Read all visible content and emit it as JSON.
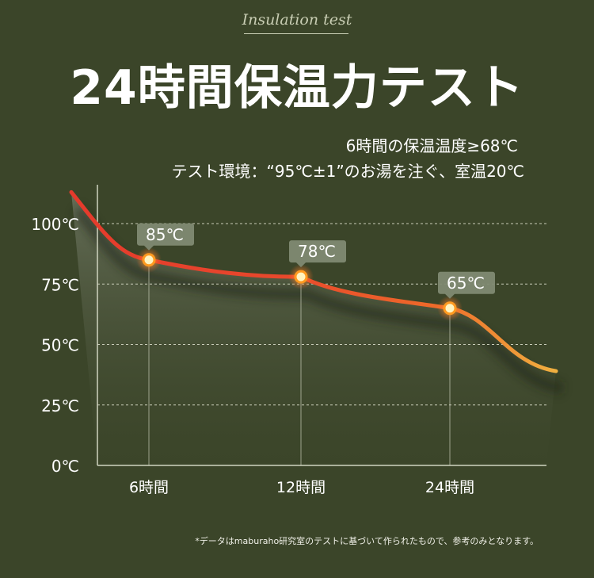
{
  "header": {
    "eyebrow": "Insulation test",
    "title": "24時間保温力テスト",
    "subtitle_1": "6時間の保温温度≥68℃",
    "subtitle_2": "テスト環境：“95℃±1”のお湯を注ぐ、室温20℃"
  },
  "footnote": "*データはmaburaho研究室のテストに基づいて作られたもので、参考のみとなります。",
  "colors": {
    "background": "#3b4529",
    "line_hot": "#e53a2c",
    "line_mid": "#ee6a2a",
    "line_cool": "#f0b040",
    "label_box": "#7f8a72"
  },
  "chart_data": {
    "type": "line",
    "categories": [
      "6時間",
      "12時間",
      "24時間"
    ],
    "values": [
      85,
      78,
      65
    ],
    "data_labels": [
      "85℃",
      "78℃",
      "65℃"
    ],
    "y_ticks": [
      0,
      25,
      50,
      75,
      100
    ],
    "y_tick_labels": [
      "0℃",
      "25℃",
      "50℃",
      "75℃",
      "100℃"
    ],
    "ylim": [
      0,
      100
    ],
    "grid": "horizontal dashed",
    "title": "",
    "xlabel": "",
    "ylabel": ""
  }
}
